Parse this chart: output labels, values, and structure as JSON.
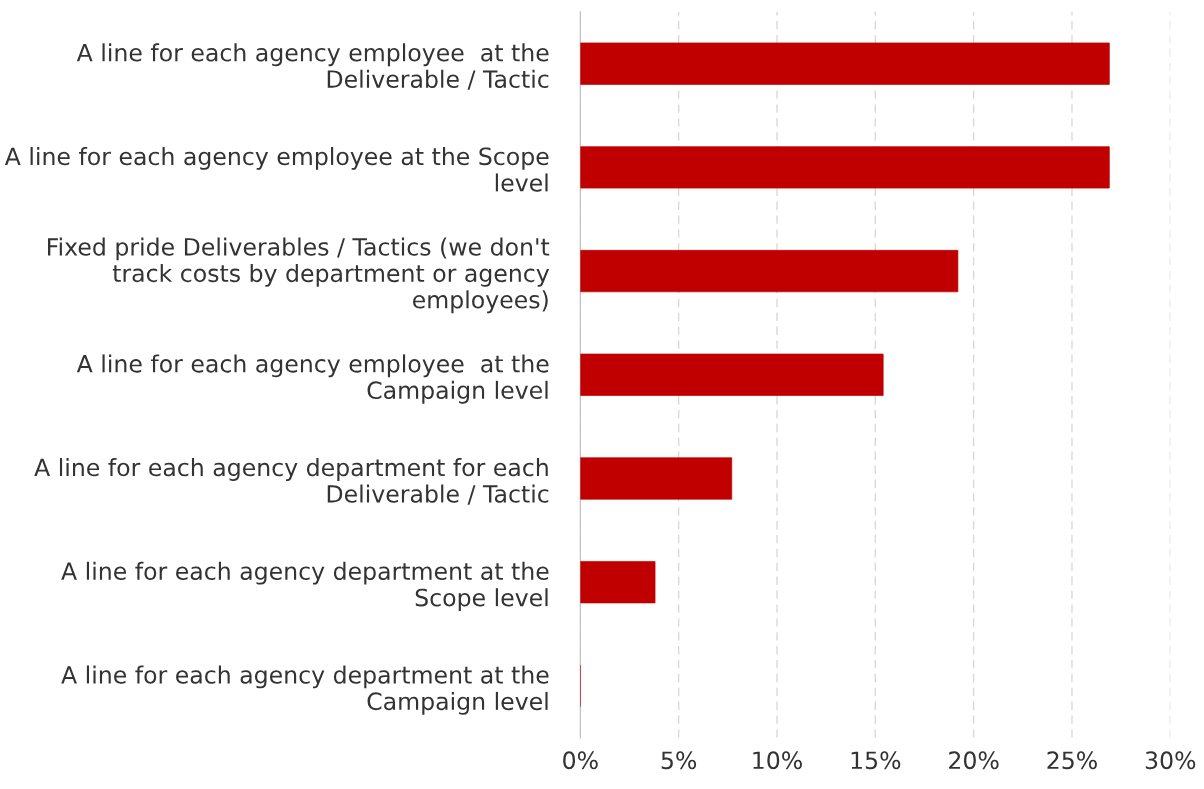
{
  "chart_data": {
    "type": "bar",
    "orientation": "horizontal",
    "categories": [
      "A line for each agency employee  at the Deliverable / Tactic",
      "A line for each agency employee at the Scope level",
      "Fixed pride Deliverables / Tactics (we don't track costs by department or agency employees)",
      "A line for each agency employee  at the Campaign level",
      "A line for each agency department for each Deliverable / Tactic",
      "A line for each agency department at the Scope level",
      "A line for each agency department at the Campaign level"
    ],
    "values": [
      26.9,
      26.9,
      19.2,
      15.4,
      7.7,
      3.8,
      0
    ],
    "color": "#c00000",
    "xlim": [
      0,
      30
    ],
    "xticks": [
      {
        "value": 0,
        "label": "0%"
      },
      {
        "value": 5,
        "label": "5%"
      },
      {
        "value": 10,
        "label": "10%"
      },
      {
        "value": 15,
        "label": "15%"
      },
      {
        "value": 20,
        "label": "20%"
      },
      {
        "value": 25,
        "label": "25%"
      },
      {
        "value": 30,
        "label": "30%"
      }
    ],
    "grid": "x"
  }
}
